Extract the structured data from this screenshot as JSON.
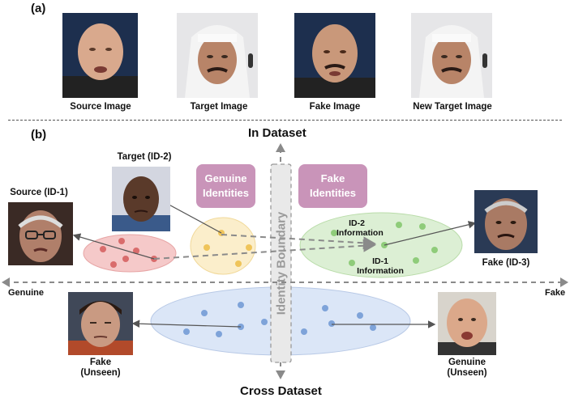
{
  "panel_a": {
    "label": "(a)",
    "captions": [
      "Source Image",
      "Target Image",
      "Fake Image",
      "New Target Image"
    ]
  },
  "panel_b": {
    "label": "(b)",
    "top_axis": "In Dataset",
    "bottom_axis": "Cross Dataset",
    "left_axis": "Genuine",
    "right_axis": "Fake",
    "boundary": "Identity Boundary",
    "genuine_identities": "Genuine Identities",
    "fake_identities": "Fake Identities",
    "source": "Source (ID-1)",
    "target": "Target (ID-2)",
    "fake_id3": "Fake (ID-3)",
    "id2_info": "ID-2 Information",
    "id1_info": "ID-1 Information",
    "fake_unseen": "Fake (Unseen)",
    "genuine_unseen": "Genuine (Unseen)"
  },
  "colors": {
    "pink_cluster": "#f5c9c9",
    "pink_dot": "#d96c6c",
    "yellow_cluster": "#fbeecb",
    "yellow_dot": "#efc45a",
    "green_cluster": "#dcefd4",
    "green_dot": "#8fcc7a",
    "blue_cluster": "#dbe6f7",
    "blue_dot": "#7ea3d9",
    "identity_pill": "#c994b9",
    "boundary": "#999999"
  }
}
